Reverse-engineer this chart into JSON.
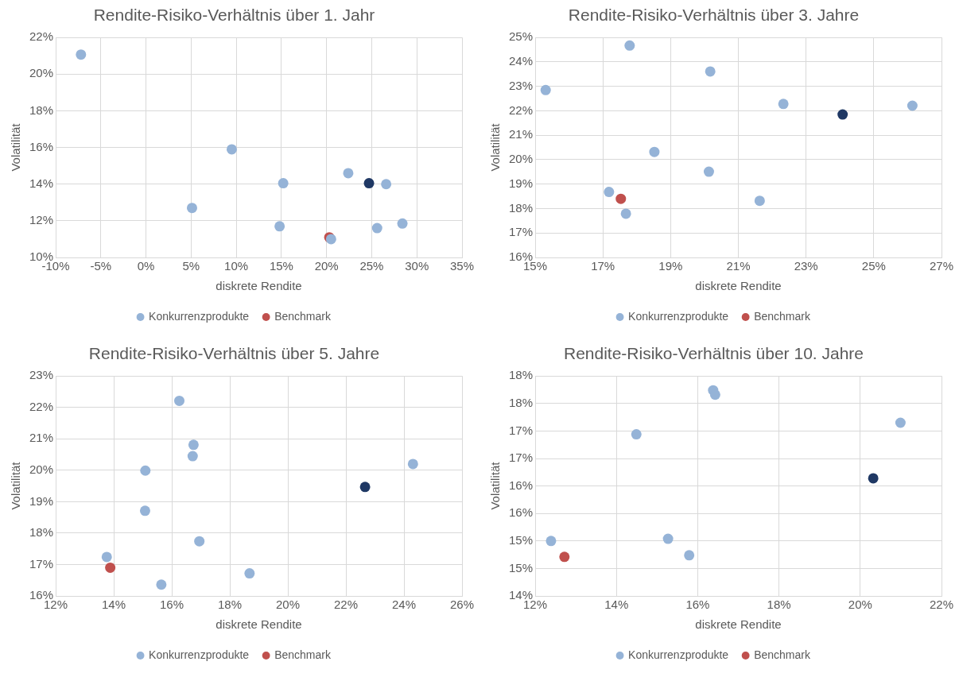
{
  "chart_data": [
    {
      "type": "scatter",
      "title": "Rendite-Risiko-Verhältnis über 1. Jahr",
      "xlabel": "diskrete Rendite",
      "ylabel": "Volatilität",
      "xlim": [
        -10,
        35
      ],
      "xticks": [
        {
          "value": -10,
          "label": "-10%"
        },
        {
          "value": -5,
          "label": "-5%"
        },
        {
          "value": 0,
          "label": "0%"
        },
        {
          "value": 5,
          "label": "5%"
        },
        {
          "value": 10,
          "label": "10%"
        },
        {
          "value": 15,
          "label": "15%"
        },
        {
          "value": 20,
          "label": "20%"
        },
        {
          "value": 25,
          "label": "25%"
        },
        {
          "value": 30,
          "label": "30%"
        },
        {
          "value": 35,
          "label": "35%"
        }
      ],
      "ylim": [
        10,
        22
      ],
      "yticks": [
        {
          "value": 10,
          "label": "10%"
        },
        {
          "value": 12,
          "label": "12%"
        },
        {
          "value": 14,
          "label": "14%"
        },
        {
          "value": 16,
          "label": "16%"
        },
        {
          "value": 18,
          "label": "18%"
        },
        {
          "value": 20,
          "label": "20%"
        },
        {
          "value": 22,
          "label": "22%"
        }
      ],
      "grid": true,
      "legend": "bottom",
      "marker": "circle",
      "series": [
        {
          "color": "#1f3864",
          "x": [
            24.7
          ],
          "values": [
            14.05
          ]
        },
        {
          "name": "Benchmark",
          "color": "#c0504d",
          "x": [
            20.3
          ],
          "values": [
            11.1
          ]
        },
        {
          "name": "Konkurrenzprodukte",
          "color": "#95b3d7",
          "x": [
            -7.2,
            9.5,
            5.1,
            15.2,
            14.8,
            22.4,
            26.6,
            25.6,
            28.4,
            20.5
          ],
          "values": [
            21.07,
            15.9,
            12.7,
            14.05,
            11.7,
            14.6,
            14.0,
            11.6,
            11.85,
            11.0
          ]
        }
      ]
    },
    {
      "type": "scatter",
      "title": "Rendite-Risiko-Verhältnis über 3. Jahre",
      "xlabel": "diskrete Rendite",
      "ylabel": "Volatilität",
      "xlim": [
        15,
        27
      ],
      "xticks": [
        {
          "value": 15,
          "label": "15%"
        },
        {
          "value": 17,
          "label": "17%"
        },
        {
          "value": 19,
          "label": "19%"
        },
        {
          "value": 21,
          "label": "21%"
        },
        {
          "value": 23,
          "label": "23%"
        },
        {
          "value": 25,
          "label": "25%"
        },
        {
          "value": 27,
          "label": "27%"
        }
      ],
      "ylim": [
        16,
        25
      ],
      "yticks": [
        {
          "value": 16,
          "label": "16%"
        },
        {
          "value": 17,
          "label": "17%"
        },
        {
          "value": 18,
          "label": "18%"
        },
        {
          "value": 19,
          "label": "19%"
        },
        {
          "value": 20,
          "label": "20%"
        },
        {
          "value": 21,
          "label": "21%"
        },
        {
          "value": 22,
          "label": "22%"
        },
        {
          "value": 23,
          "label": "23%"
        },
        {
          "value": 24,
          "label": "24%"
        },
        {
          "value": 25,
          "label": "25%"
        }
      ],
      "grid": true,
      "legend": "bottom",
      "marker": "circle",
      "series": [
        {
          "color": "#1f3864",
          "x": [
            24.08
          ],
          "values": [
            21.85
          ]
        },
        {
          "name": "Benchmark",
          "color": "#c0504d",
          "x": [
            17.53
          ],
          "values": [
            18.4
          ]
        },
        {
          "name": "Konkurrenzprodukte",
          "color": "#95b3d7",
          "x": [
            15.31,
            17.79,
            20.17,
            22.33,
            26.14,
            18.52,
            20.13,
            17.18,
            17.68,
            21.63
          ],
          "values": [
            22.85,
            24.67,
            23.61,
            22.28,
            22.21,
            20.32,
            19.51,
            18.68,
            17.79,
            18.32
          ]
        }
      ]
    },
    {
      "type": "scatter",
      "title": "Rendite-Risiko-Verhältnis über 5. Jahre",
      "xlabel": "diskrete Rendite",
      "ylabel": "Volatilität",
      "xlim": [
        12,
        26
      ],
      "xticks": [
        {
          "value": 12,
          "label": "12%"
        },
        {
          "value": 14,
          "label": "14%"
        },
        {
          "value": 16,
          "label": "16%"
        },
        {
          "value": 18,
          "label": "18%"
        },
        {
          "value": 20,
          "label": "20%"
        },
        {
          "value": 22,
          "label": "22%"
        },
        {
          "value": 24,
          "label": "24%"
        },
        {
          "value": 26,
          "label": "26%"
        }
      ],
      "ylim": [
        16,
        23
      ],
      "yticks": [
        {
          "value": 16,
          "label": "16%"
        },
        {
          "value": 17,
          "label": "17%"
        },
        {
          "value": 18,
          "label": "18%"
        },
        {
          "value": 19,
          "label": "19%"
        },
        {
          "value": 20,
          "label": "20%"
        },
        {
          "value": 21,
          "label": "21%"
        },
        {
          "value": 22,
          "label": "22%"
        },
        {
          "value": 23,
          "label": "23%"
        }
      ],
      "grid": true,
      "legend": "bottom",
      "marker": "circle",
      "series": [
        {
          "color": "#1f3864",
          "x": [
            22.66
          ],
          "values": [
            19.47
          ]
        },
        {
          "name": "Benchmark",
          "color": "#c0504d",
          "x": [
            13.88
          ],
          "values": [
            16.9
          ]
        },
        {
          "name": "Konkurrenzprodukte",
          "color": "#95b3d7",
          "x": [
            16.26,
            16.75,
            16.72,
            15.09,
            15.08,
            16.95,
            13.76,
            15.64,
            18.68,
            24.31
          ],
          "values": [
            22.21,
            20.81,
            20.45,
            19.99,
            18.71,
            17.74,
            17.24,
            16.36,
            16.72,
            20.2
          ]
        }
      ]
    },
    {
      "type": "scatter",
      "title": "Rendite-Risiko-Verhältnis über 10. Jahre",
      "xlabel": "diskrete Rendite",
      "ylabel": "Volatilität",
      "xlim": [
        12,
        22
      ],
      "xticks": [
        {
          "value": 12,
          "label": "12%"
        },
        {
          "value": 14,
          "label": "14%"
        },
        {
          "value": 16,
          "label": "16%"
        },
        {
          "value": 18,
          "label": "18%"
        },
        {
          "value": 20,
          "label": "20%"
        },
        {
          "value": 22,
          "label": "22%"
        }
      ],
      "ylim": [
        14,
        18
      ],
      "yticks": [
        {
          "value": 14,
          "label": "14%"
        },
        {
          "value": 14.5,
          "label": "15%"
        },
        {
          "value": 15,
          "label": "15%"
        },
        {
          "value": 15.5,
          "label": "16%"
        },
        {
          "value": 16,
          "label": "16%"
        },
        {
          "value": 16.5,
          "label": "17%"
        },
        {
          "value": 17,
          "label": "17%"
        },
        {
          "value": 17.5,
          "label": "18%"
        },
        {
          "value": 18,
          "label": "18%"
        }
      ],
      "grid": true,
      "legend": "bottom",
      "marker": "circle",
      "series": [
        {
          "color": "#1f3864",
          "x": [
            20.32
          ],
          "values": [
            16.14
          ]
        },
        {
          "name": "Benchmark",
          "color": "#c0504d",
          "x": [
            12.72
          ],
          "values": [
            14.71
          ]
        },
        {
          "name": "Konkurrenzprodukte",
          "color": "#95b3d7",
          "x": [
            16.38,
            16.43,
            14.49,
            20.99,
            12.39,
            15.27,
            15.79
          ],
          "values": [
            17.74,
            17.66,
            16.94,
            17.15,
            15.0,
            15.04,
            14.74
          ]
        }
      ]
    }
  ]
}
